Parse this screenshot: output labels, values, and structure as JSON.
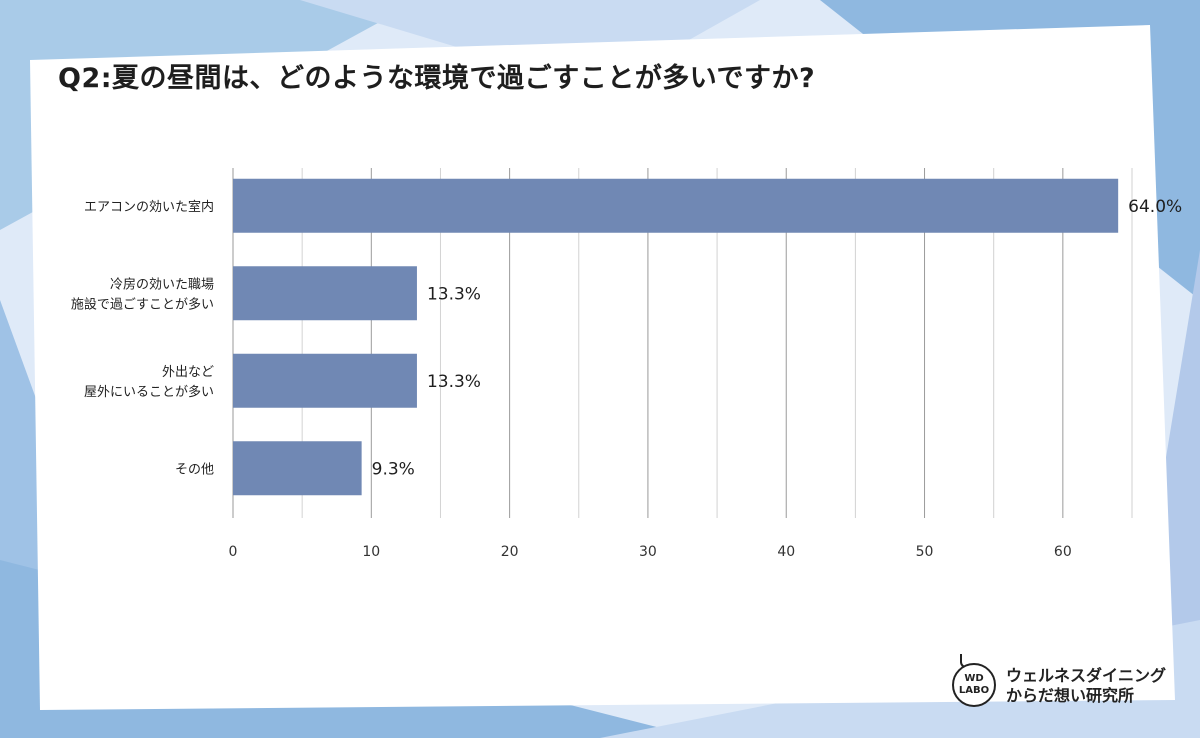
{
  "title": "Q2:夏の昼間は、どのような環境で過ごすことが多いですか?",
  "colors": {
    "bar": "#7088b4",
    "background_shapes": [
      "#a9cbe8",
      "#c9dbf2",
      "#8fb8e0",
      "#d6e6f7",
      "#b3c9ea"
    ]
  },
  "chart_data": {
    "type": "bar",
    "orientation": "horizontal",
    "categories": [
      [
        "エアコンの効いた室内"
      ],
      [
        "冷房の効いた職場",
        "施設で過ごすことが多い"
      ],
      [
        "外出など",
        "屋外にいることが多い"
      ],
      [
        "その他"
      ]
    ],
    "values": [
      64.0,
      13.3,
      13.3,
      9.3
    ],
    "value_labels": [
      "64.0%",
      "13.3%",
      "13.3%",
      "9.3%"
    ],
    "xlim": [
      0,
      65
    ],
    "xticks": [
      0,
      10,
      20,
      30,
      40,
      50,
      60
    ],
    "minor_grid_step": 5,
    "grid": true,
    "legend": "none"
  },
  "logo": {
    "mark_line1": "WD",
    "mark_line2": "LABO",
    "text_line1": "ウェルネスダイニング",
    "text_line2": "からだ想い研究所"
  }
}
